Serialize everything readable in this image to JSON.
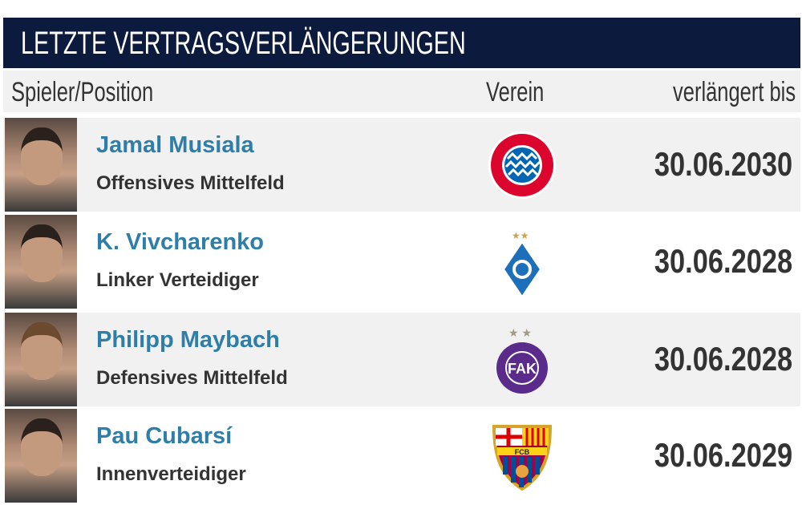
{
  "title": "LETZTE VERTRAGSVERLÄNGERUNGEN",
  "columns": {
    "player": "Spieler/Position",
    "club": "Verein",
    "until": "verlängert bis"
  },
  "rows": [
    {
      "name": "Jamal Musiala",
      "position": "Offensives Mittelfeld",
      "club_logo": "fc-bayern-muenchen-logo",
      "date": "30.06.2030"
    },
    {
      "name": "K. Vivcharenko",
      "position": "Linker Verteidiger",
      "club_logo": "dynamo-kyiv-logo",
      "date": "30.06.2028"
    },
    {
      "name": "Philipp Maybach",
      "position": "Defensives Mittelfeld",
      "club_logo": "fk-austria-wien-logo",
      "date": "30.06.2028"
    },
    {
      "name": "Pau Cubarsí",
      "position": "Innenverteidiger",
      "club_logo": "fc-barcelona-logo",
      "date": "30.06.2029"
    }
  ],
  "colors": {
    "header": "#0b1a3d",
    "name": "#2f7ea7"
  }
}
